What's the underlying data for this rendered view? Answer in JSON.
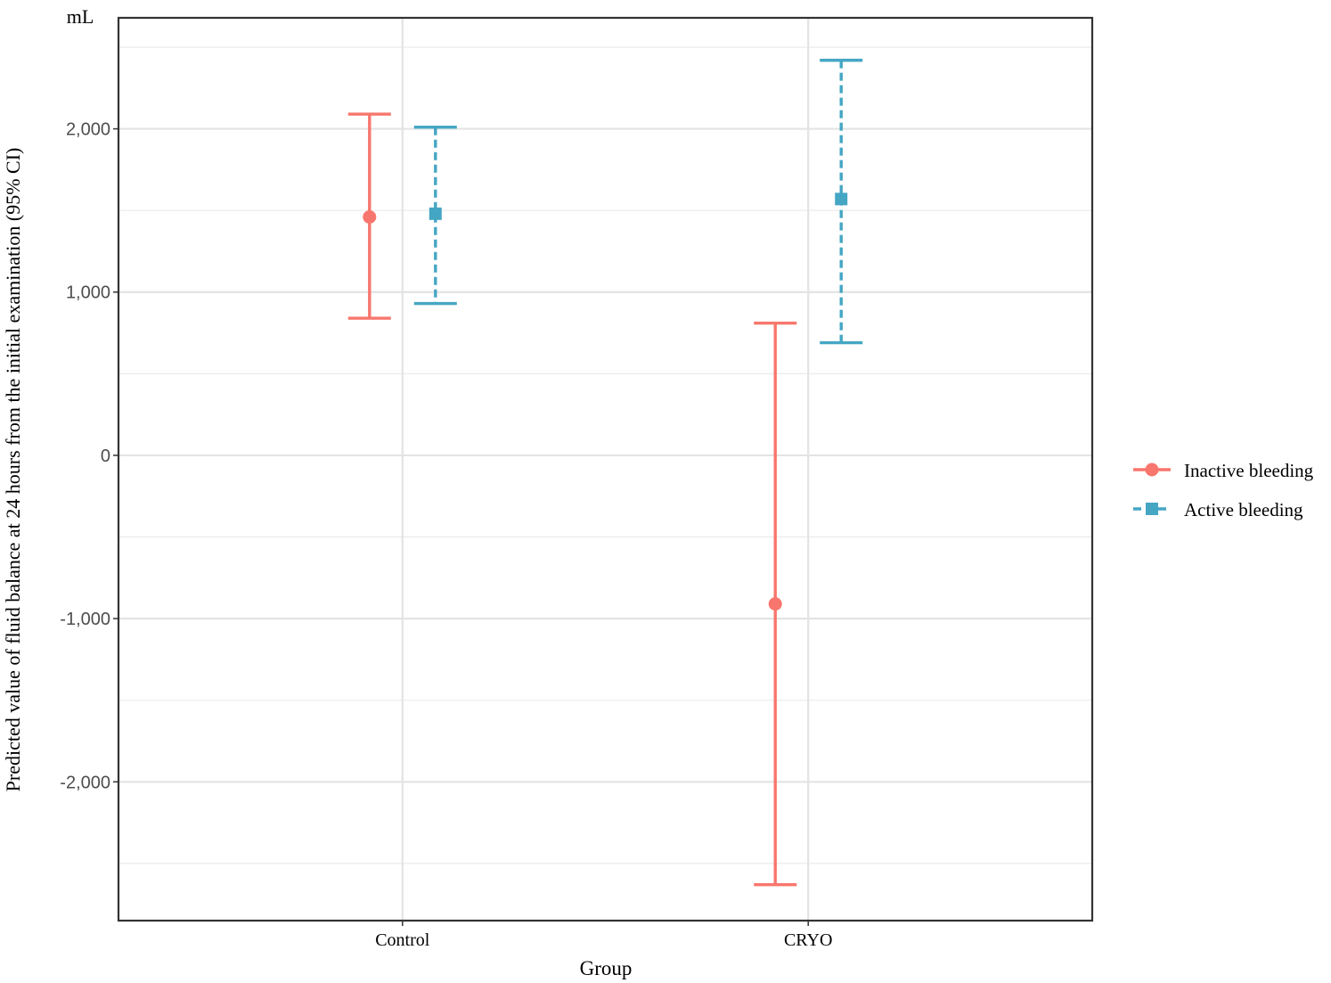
{
  "chart_data": {
    "type": "errorbar",
    "title": "",
    "unit_label": "mL",
    "xlabel": "Group",
    "ylabel": "Predicted value of fluid balance at 24 hours from the initial examination (95% CI)",
    "categories": [
      "Control",
      "CRYO"
    ],
    "ylim": [
      -2850,
      2680
    ],
    "yticks": [
      -2000,
      -1000,
      0,
      1000,
      2000
    ],
    "ytick_labels": [
      "-2,000",
      "-1,000",
      "0",
      "1,000",
      "2,000"
    ],
    "grid": true,
    "legend_position": "right",
    "series": [
      {
        "name": "Inactive bleeding",
        "color": "#F8766D",
        "marker": "circle",
        "linestyle": "solid",
        "points": [
          {
            "category": "Control",
            "estimate": 1460,
            "lower": 840,
            "upper": 2090
          },
          {
            "category": "CRYO",
            "estimate": -910,
            "lower": -2630,
            "upper": 810
          }
        ]
      },
      {
        "name": "Active bleeding",
        "color": "#45A6C4",
        "marker": "square",
        "linestyle": "dashed",
        "points": [
          {
            "category": "Control",
            "estimate": 1480,
            "lower": 930,
            "upper": 2010
          },
          {
            "category": "CRYO",
            "estimate": 1570,
            "lower": 690,
            "upper": 2420
          }
        ]
      }
    ]
  }
}
